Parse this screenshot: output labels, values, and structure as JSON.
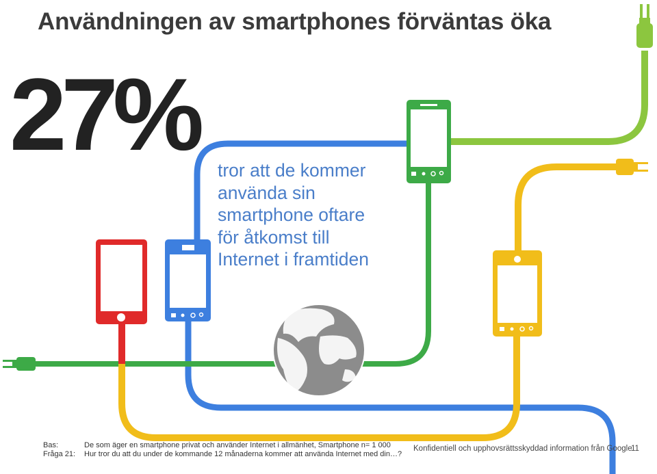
{
  "slide": {
    "title": "Användningen av smartphones förväntas öka",
    "stat": "27%",
    "description_lines": [
      "tror att de kommer",
      "använda sin",
      "smartphone oftare",
      "för åtkomst till",
      "Internet i framtiden"
    ]
  },
  "footer": {
    "bas_label": "Bas:",
    "bas_text": "De som äger en smartphone privat och använder Internet i allmänhet, Smartphone n= 1 000",
    "fraga_label": "Fråga 21:",
    "fraga_text": "Hur tror du att du under de kommande 12 månaderna kommer att använda Internet med din…?",
    "confidential": "Konfidentiell och upphovsrättsskyddad information från Google",
    "page_number": "11"
  },
  "colors": {
    "red": "#e02a2a",
    "blue": "#3d7fdf",
    "green": "#3daa47",
    "lime": "#8cc63f",
    "yellow": "#f1bd1a",
    "globe": "#8c8c8c",
    "text_blue": "#4a7ec9"
  },
  "icons": [
    "plug-icon",
    "smartphone-icon",
    "globe-icon",
    "home-icon",
    "back-icon",
    "search-icon"
  ]
}
